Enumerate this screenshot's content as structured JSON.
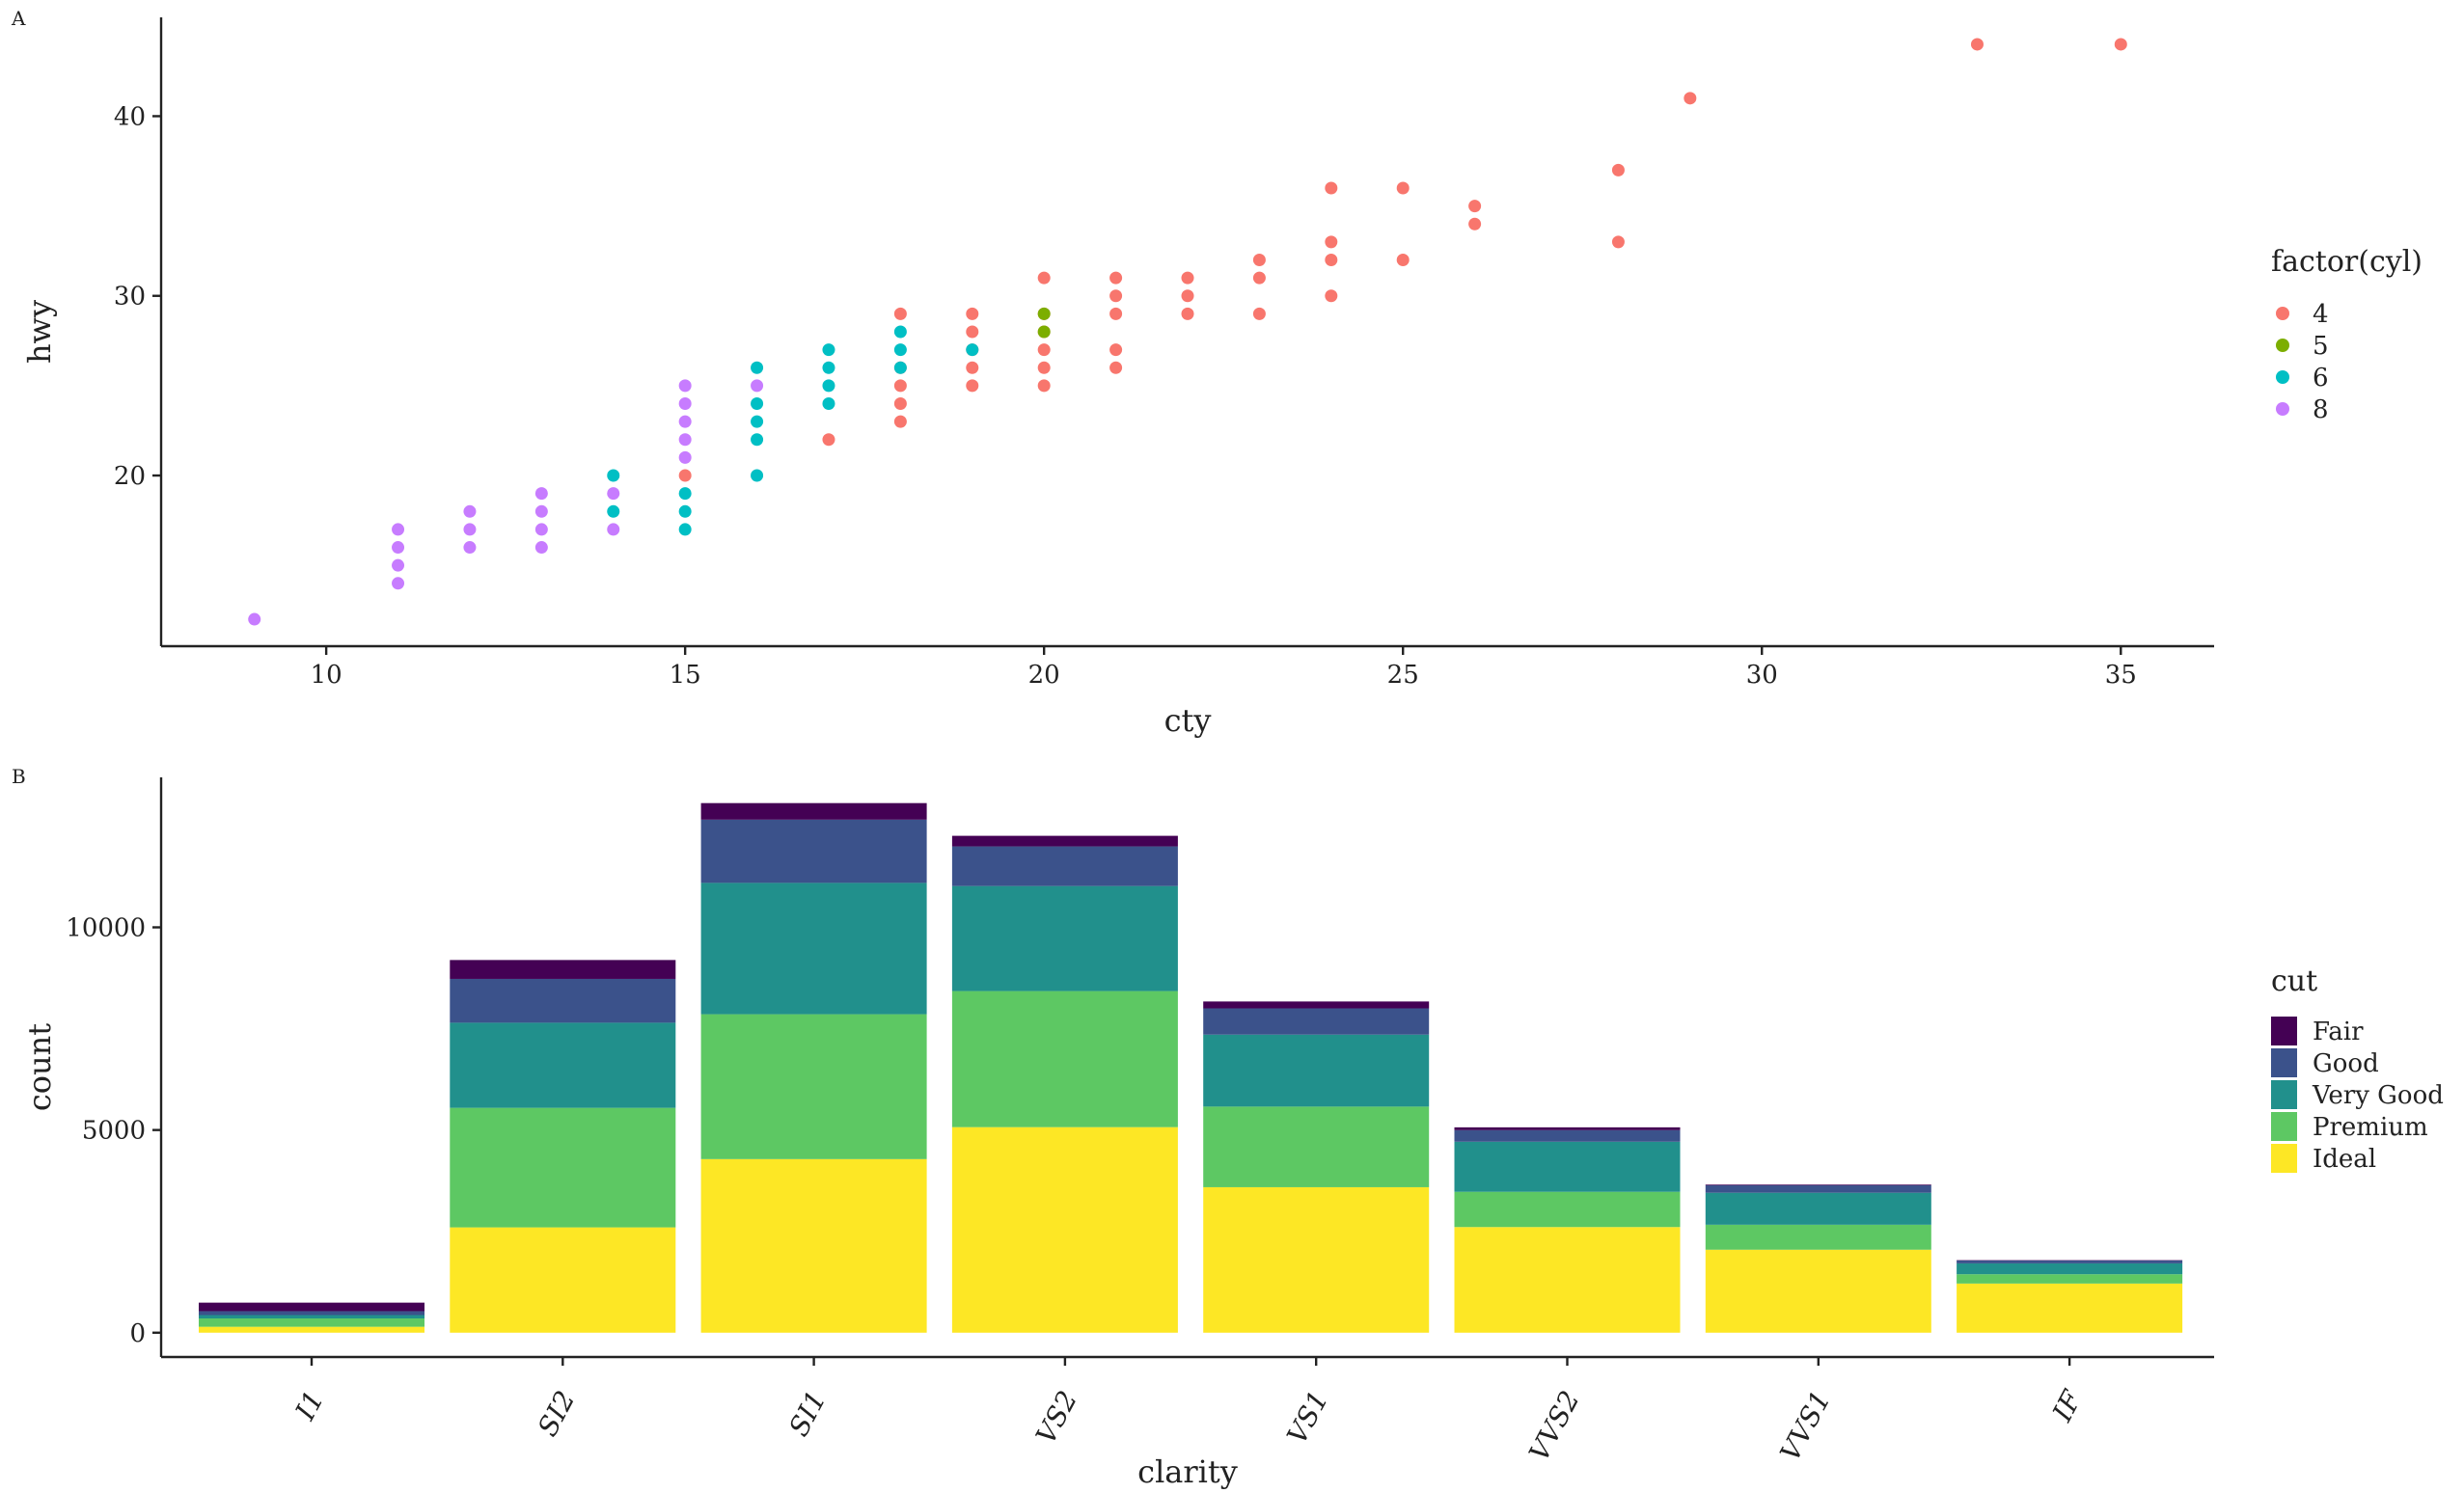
{
  "panels": {
    "a_tag": "A",
    "b_tag": "B"
  },
  "chart_data": [
    {
      "type": "scatter",
      "title": "",
      "xlabel": "cty",
      "ylabel": "hwy",
      "xlim": [
        7.7,
        36.3
      ],
      "ylim": [
        10.5,
        45.5
      ],
      "xticks": [
        10,
        15,
        20,
        25,
        30,
        35
      ],
      "yticks": [
        20,
        30,
        40
      ],
      "grid": false,
      "legend": {
        "title": "factor(cyl)",
        "position": "right"
      },
      "series": [
        {
          "name": "4",
          "color": "#F8766D",
          "points": [
            [
              33,
              44
            ],
            [
              35,
              44
            ],
            [
              29,
              41
            ],
            [
              28,
              37
            ],
            [
              28,
              33
            ],
            [
              26,
              35
            ],
            [
              26,
              34
            ],
            [
              25,
              36
            ],
            [
              25,
              32
            ],
            [
              24,
              36
            ],
            [
              24,
              33
            ],
            [
              24,
              32
            ],
            [
              24,
              30
            ],
            [
              23,
              32
            ],
            [
              23,
              31
            ],
            [
              23,
              29
            ],
            [
              22,
              31
            ],
            [
              22,
              30
            ],
            [
              22,
              29
            ],
            [
              21,
              31
            ],
            [
              21,
              30
            ],
            [
              21,
              29
            ],
            [
              21,
              27
            ],
            [
              21,
              26
            ],
            [
              20,
              31
            ],
            [
              20,
              29
            ],
            [
              20,
              28
            ],
            [
              20,
              27
            ],
            [
              20,
              26
            ],
            [
              20,
              25
            ],
            [
              19,
              29
            ],
            [
              19,
              28
            ],
            [
              19,
              27
            ],
            [
              19,
              26
            ],
            [
              19,
              25
            ],
            [
              18,
              29
            ],
            [
              18,
              26
            ],
            [
              18,
              25
            ],
            [
              18,
              24
            ],
            [
              18,
              23
            ],
            [
              17,
              22
            ],
            [
              15,
              20
            ]
          ]
        },
        {
          "name": "5",
          "color": "#7CAE00",
          "points": [
            [
              20,
              29
            ],
            [
              20,
              28
            ]
          ]
        },
        {
          "name": "6",
          "color": "#00BFC4",
          "points": [
            [
              14,
              20
            ],
            [
              14,
              18
            ],
            [
              15,
              19
            ],
            [
              15,
              18
            ],
            [
              15,
              17
            ],
            [
              16,
              26
            ],
            [
              16,
              24
            ],
            [
              16,
              23
            ],
            [
              16,
              22
            ],
            [
              16,
              20
            ],
            [
              17,
              27
            ],
            [
              17,
              26
            ],
            [
              17,
              25
            ],
            [
              17,
              24
            ],
            [
              18,
              28
            ],
            [
              18,
              27
            ],
            [
              18,
              26
            ],
            [
              19,
              27
            ]
          ]
        },
        {
          "name": "8",
          "color": "#C77CFF",
          "points": [
            [
              9,
              12
            ],
            [
              11,
              17
            ],
            [
              11,
              16
            ],
            [
              11,
              15
            ],
            [
              11,
              14
            ],
            [
              12,
              18
            ],
            [
              12,
              17
            ],
            [
              12,
              16
            ],
            [
              13,
              19
            ],
            [
              13,
              18
            ],
            [
              13,
              17
            ],
            [
              13,
              16
            ],
            [
              14,
              19
            ],
            [
              14,
              17
            ],
            [
              15,
              25
            ],
            [
              15,
              24
            ],
            [
              15,
              23
            ],
            [
              15,
              22
            ],
            [
              15,
              21
            ],
            [
              16,
              25
            ]
          ]
        }
      ]
    },
    {
      "type": "bar",
      "stacked": true,
      "title": "",
      "xlabel": "clarity",
      "ylabel": "count",
      "ylim": [
        -600,
        13700
      ],
      "yticks": [
        0,
        5000,
        10000
      ],
      "grid": false,
      "categories": [
        "I1",
        "SI2",
        "SI1",
        "VS2",
        "VS1",
        "VVS2",
        "VVS1",
        "IF"
      ],
      "legend": {
        "title": "cut",
        "position": "right"
      },
      "series": [
        {
          "name": "Fair",
          "color": "#440154",
          "values": [
            210,
            466,
            408,
            261,
            170,
            69,
            17,
            9
          ]
        },
        {
          "name": "Good",
          "color": "#3B528B",
          "values": [
            96,
            1081,
            1560,
            978,
            648,
            286,
            186,
            71
          ]
        },
        {
          "name": "Very Good",
          "color": "#21908C",
          "values": [
            84,
            2100,
            3240,
            2591,
            1775,
            1235,
            789,
            268
          ]
        },
        {
          "name": "Premium",
          "color": "#5DC863",
          "values": [
            205,
            2949,
            3575,
            3357,
            1989,
            870,
            616,
            230
          ]
        },
        {
          "name": "Ideal",
          "color": "#FDE725",
          "values": [
            146,
            2598,
            4282,
            5071,
            3589,
            2606,
            2047,
            1212
          ]
        }
      ]
    }
  ]
}
